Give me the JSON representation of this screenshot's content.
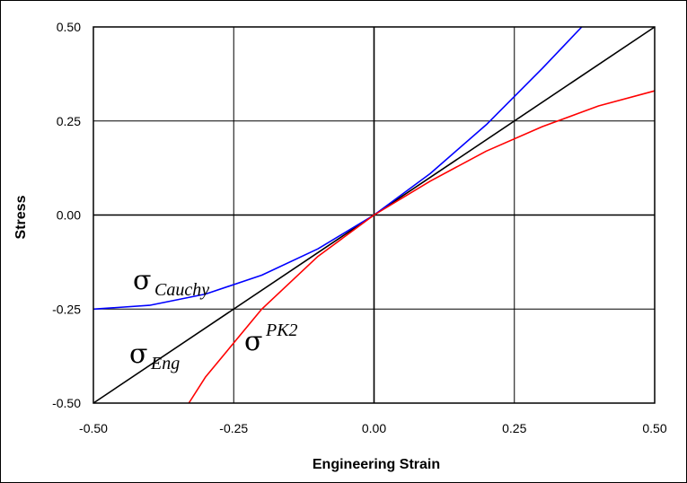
{
  "chart_data": {
    "type": "line",
    "xlabel": "Engineering Strain",
    "ylabel": "Stress",
    "xlim": [
      -0.5,
      0.5
    ],
    "ylim": [
      -0.5,
      0.5
    ],
    "x_ticks": [
      "-0.50",
      "-0.25",
      "0.00",
      "0.25",
      "0.50"
    ],
    "y_ticks": [
      "0.50",
      "0.25",
      "0.00",
      "-0.25",
      "-0.50"
    ],
    "grid": true,
    "series": [
      {
        "name": "Eng",
        "color": "#000000",
        "points": [
          [
            -0.5,
            -0.5
          ],
          [
            0.5,
            0.5
          ]
        ]
      },
      {
        "name": "Cauchy",
        "color": "#0000ff",
        "points": [
          [
            -0.5,
            -0.25
          ],
          [
            -0.4,
            -0.24
          ],
          [
            -0.3,
            -0.21
          ],
          [
            -0.2,
            -0.16
          ],
          [
            -0.1,
            -0.09
          ],
          [
            0.0,
            0.0
          ],
          [
            0.1,
            0.11
          ],
          [
            0.2,
            0.24
          ],
          [
            0.3,
            0.39
          ],
          [
            0.37,
            0.5
          ]
        ]
      },
      {
        "name": "PK2",
        "color": "#ff0000",
        "points": [
          [
            -0.33,
            -0.5
          ],
          [
            -0.3,
            -0.43
          ],
          [
            -0.2,
            -0.25
          ],
          [
            -0.1,
            -0.11
          ],
          [
            0.0,
            0.0
          ],
          [
            0.1,
            0.09
          ],
          [
            0.2,
            0.17
          ],
          [
            0.3,
            0.235
          ],
          [
            0.4,
            0.29
          ],
          [
            0.5,
            0.33
          ]
        ]
      }
    ],
    "annotations": [
      {
        "symbol": "σ",
        "subscript": "Cauchy"
      },
      {
        "symbol": "σ",
        "subscript": "Eng"
      },
      {
        "symbol": "σ",
        "superscript": "PK2"
      }
    ]
  }
}
